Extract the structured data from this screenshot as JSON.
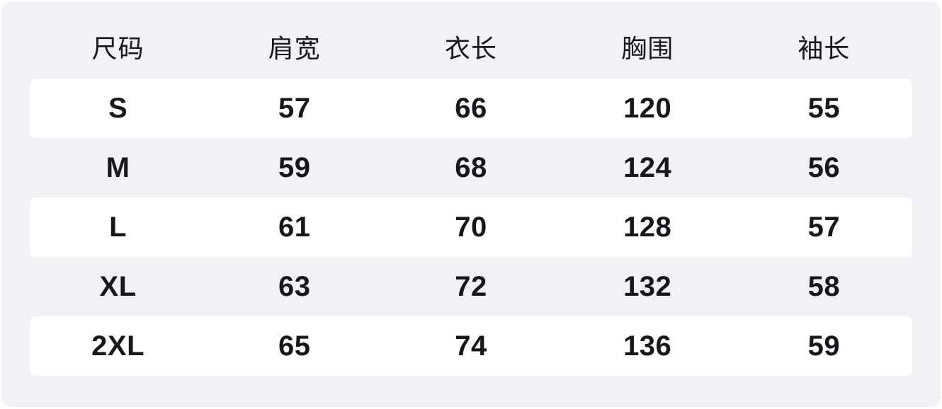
{
  "colors": {
    "page_background": "#ffffff",
    "panel_background": "#f2f2f6",
    "stripe_background": "#ffffff",
    "text_color": "#17181c"
  },
  "chart_data": {
    "type": "table",
    "title": "",
    "columns": [
      "尺码",
      "肩宽",
      "衣长",
      "胸围",
      "袖长"
    ],
    "rows": [
      [
        "S",
        "57",
        "66",
        "120",
        "55"
      ],
      [
        "M",
        "59",
        "68",
        "124",
        "56"
      ],
      [
        "L",
        "61",
        "70",
        "128",
        "57"
      ],
      [
        "XL",
        "63",
        "72",
        "132",
        "58"
      ],
      [
        "2XL",
        "65",
        "74",
        "136",
        "59"
      ]
    ],
    "layout": {
      "striped_rows": [
        0,
        2,
        4
      ],
      "columns_equal_width": true,
      "grid": "off"
    }
  }
}
